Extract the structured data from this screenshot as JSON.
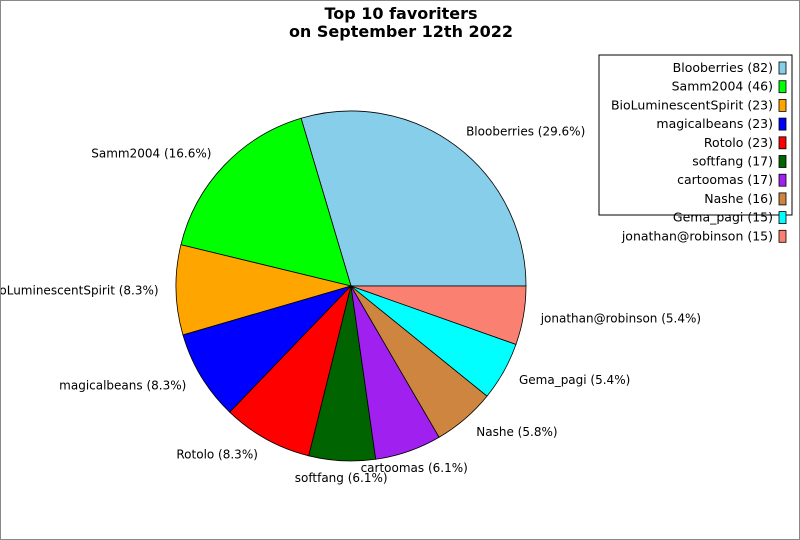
{
  "chart_data": {
    "type": "pie",
    "title": [
      "Top 10 favoriters",
      "on September 12th 2022"
    ],
    "start_angle_deg": 0,
    "direction": "counterclockwise",
    "legend_position": "top-right",
    "slices": [
      {
        "name": "Blooberries",
        "value": 82,
        "pct": "29.6%",
        "color": "#87ceeb"
      },
      {
        "name": "Samm2004",
        "value": 46,
        "pct": "16.6%",
        "color": "#00ff00"
      },
      {
        "name": "BioLuminescentSpirit",
        "value": 23,
        "pct": "8.3%",
        "color": "#ffa500"
      },
      {
        "name": "magicalbeans",
        "value": 23,
        "pct": "8.3%",
        "color": "#0000ff"
      },
      {
        "name": "Rotolo",
        "value": 23,
        "pct": "8.3%",
        "color": "#ff0000"
      },
      {
        "name": "softfang",
        "value": 17,
        "pct": "6.1%",
        "color": "#006400"
      },
      {
        "name": "cartoomas",
        "value": 17,
        "pct": "6.1%",
        "color": "#a020f0"
      },
      {
        "name": "Nashe",
        "value": 16,
        "pct": "5.8%",
        "color": "#cd853f"
      },
      {
        "name": "Gema_pagi",
        "value": 15,
        "pct": "5.4%",
        "color": "#00ffff"
      },
      {
        "name": "jonathan@robinson",
        "value": 15,
        "pct": "5.4%",
        "color": "#fa8072"
      }
    ]
  }
}
